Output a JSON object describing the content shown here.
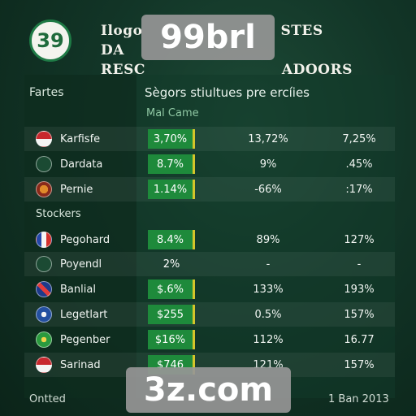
{
  "header": {
    "logo_text": "39",
    "title_line1": "Ilogo",
    "title_line2": "RESC",
    "title_right1": "STES DA",
    "title_right2": "ADOORS"
  },
  "overlays": {
    "top": "99brl",
    "bottom": "3z.com"
  },
  "table": {
    "left_header": "Fartes",
    "main_header": "Sègors stiultues pre ercíies",
    "sub_header": "Mal Came",
    "section_label": "Stockers",
    "rows": [
      {
        "name": "Karfisfe",
        "c1": "3,70%",
        "c2": "13,72%",
        "c3": "7,25%",
        "highlight": true,
        "flag": "flag-red-white"
      },
      {
        "name": "Dardata",
        "c1": "8.7%",
        "c2": "9%",
        "c3": ".45%",
        "highlight": true,
        "flag": "flag-sprout"
      },
      {
        "name": "Pernie",
        "c1": "1.14%",
        "c2": "-66%",
        "c3": ":17%",
        "highlight": true,
        "flag": "flag-emblem"
      },
      {
        "name": "Pegohard",
        "c1": "8.4%",
        "c2": "89%",
        "c3": "127%",
        "highlight": true,
        "flag": "flag-france"
      },
      {
        "name": "Poyendl",
        "c1": "2%",
        "c2": "-",
        "c3": "-",
        "highlight": false,
        "flag": "flag-clover"
      },
      {
        "name": "Banlial",
        "c1": "$.6%",
        "c2": "133%",
        "c3": "193%",
        "highlight": true,
        "flag": "flag-uk"
      },
      {
        "name": "Legetlart",
        "c1": "$255",
        "c2": "0.5%",
        "c3": "157%",
        "highlight": true,
        "flag": "flag-blue-crest"
      },
      {
        "name": "Pegenber",
        "c1": "$16%",
        "c2": "112%",
        "c3": "16.77",
        "highlight": true,
        "flag": "flag-green-emblem"
      },
      {
        "name": "Sarinad",
        "c1": "$746",
        "c2": "121%",
        "c3": "157%",
        "highlight": true,
        "flag": "flag-red-white-2"
      }
    ]
  },
  "footer": {
    "left": "Ontted",
    "right": "1 Ban 2013"
  },
  "colors": {
    "accent_green": "#1e8a3b",
    "marker_yellow": "#d4c52a",
    "background": "#123527"
  }
}
